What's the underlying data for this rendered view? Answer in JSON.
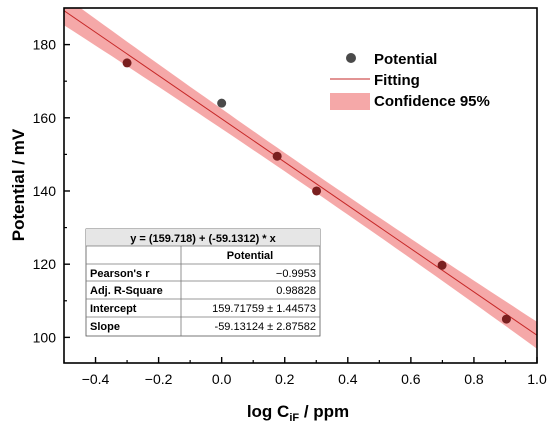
{
  "chart_data": {
    "type": "scatter",
    "xlabel_main": "log C",
    "xlabel_sub": "iF",
    "xlabel_unit": " / ppm",
    "ylabel": "Potential / mV",
    "xlim": [
      -0.5,
      1.0
    ],
    "ylim": [
      93,
      190
    ],
    "xticks": [
      -0.4,
      -0.2,
      0.0,
      0.2,
      0.4,
      0.6,
      0.8,
      1.0
    ],
    "xtick_labels": [
      "−0.4",
      "−0.2",
      "0.0",
      "0.2",
      "0.4",
      "0.6",
      "0.8",
      "1.0"
    ],
    "yticks": [
      100,
      120,
      140,
      160,
      180
    ],
    "ytick_labels": [
      "100",
      "120",
      "140",
      "160",
      "180"
    ],
    "series": [
      {
        "name": "Potential",
        "kind": "scatter",
        "x": [
          -0.3,
          0.0,
          0.176,
          0.301,
          0.699,
          0.903
        ],
        "y": [
          175,
          164,
          149.5,
          140,
          119.7,
          105
        ]
      }
    ],
    "fit": {
      "name": "Fitting",
      "intercept": 159.718,
      "slope": -59.1312,
      "color": "#c62828"
    },
    "confidence_band": {
      "name": "Confidence 95%",
      "color": "#f28b8b",
      "center_halfwidth": 2.5,
      "edge_halfwidth": 4.0
    },
    "legend_position": "top-right",
    "grid": false,
    "point_color": "#4a4a4a",
    "point_dark_color": "#7a1f1f",
    "stats_table": {
      "title": "y = (159.718) + (-59.1312) * x",
      "column_header": "Potential",
      "rows": [
        {
          "label": "Pearson's r",
          "value": "−0.9953"
        },
        {
          "label": "Adj. R-Square",
          "value": "0.98828"
        },
        {
          "label": "Intercept",
          "value": "159.71759 ± 1.44573"
        },
        {
          "label": "Slope",
          "value": "-59.13124 ± 2.87582"
        }
      ]
    }
  }
}
